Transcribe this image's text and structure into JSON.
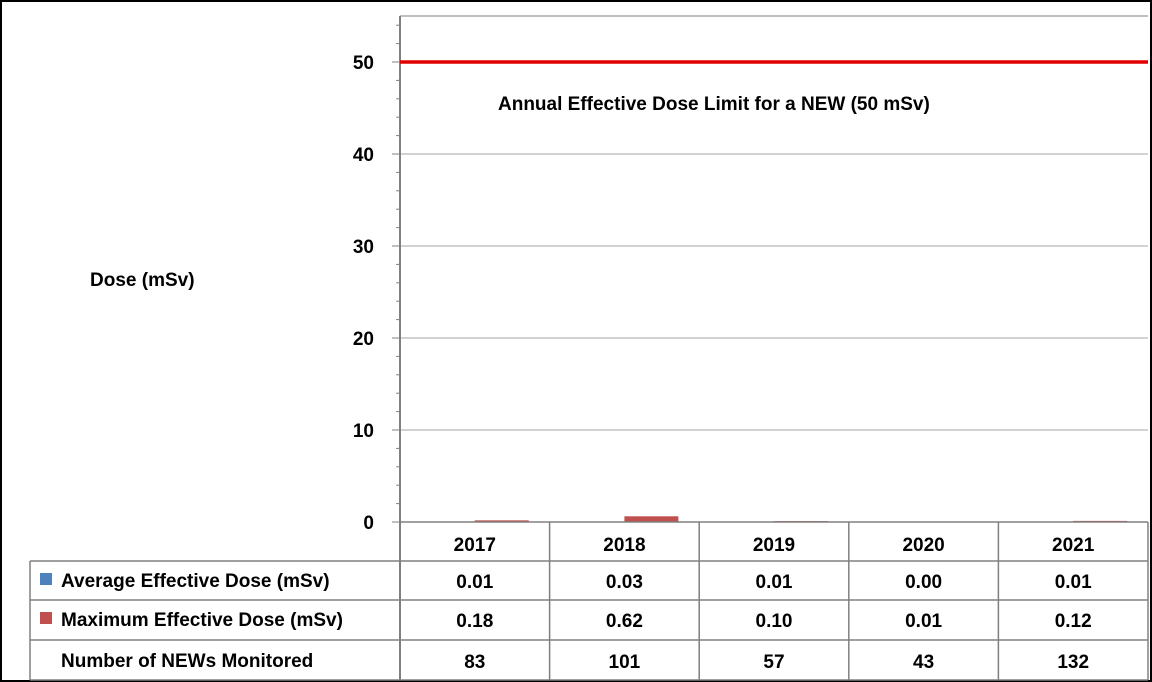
{
  "chart_data": {
    "type": "bar",
    "ylabel": "Dose (mSv)",
    "ylim": [
      0,
      55
    ],
    "yticks": [
      0,
      10,
      20,
      30,
      40,
      50
    ],
    "categories": [
      "2017",
      "2018",
      "2019",
      "2020",
      "2021"
    ],
    "series": [
      {
        "name": "Average Effective Dose (mSv)",
        "color": "#4f81bd",
        "values": [
          0.01,
          0.03,
          0.01,
          0.0,
          0.01
        ],
        "labels": [
          "0.01",
          "0.03",
          "0.01",
          "0.00",
          "0.01"
        ]
      },
      {
        "name": "Maximum Effective Dose (mSv)",
        "color": "#c0504d",
        "values": [
          0.18,
          0.62,
          0.1,
          0.01,
          0.12
        ],
        "labels": [
          "0.18",
          "0.62",
          "0.10",
          "0.01",
          "0.12"
        ]
      }
    ],
    "extra_row": {
      "name": "Number of NEWs Monitored",
      "values": [
        "83",
        "101",
        "57",
        "43",
        "132"
      ]
    },
    "reference_line": {
      "value": 50,
      "label": "Annual Effective Dose Limit for a NEW (50 mSv)",
      "color": "#e00000"
    },
    "grid": true,
    "legend": "data-table"
  }
}
